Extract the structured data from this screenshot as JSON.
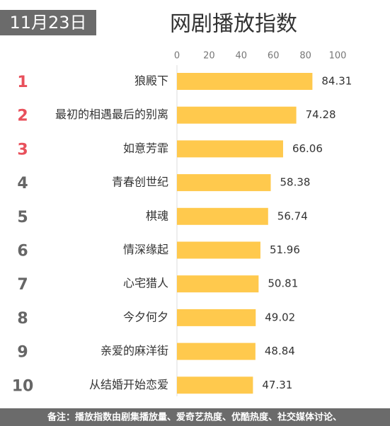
{
  "chart_data": {
    "type": "bar",
    "orientation": "horizontal",
    "date_tag": "11月23日",
    "title": "网剧播放指数",
    "ranks": [
      1,
      2,
      3,
      4,
      5,
      6,
      7,
      8,
      9,
      10
    ],
    "rank_colors": [
      "#e8505b",
      "#e8505b",
      "#e8505b",
      "#666666",
      "#666666",
      "#666666",
      "#666666",
      "#666666",
      "#666666",
      "#666666"
    ],
    "categories": [
      "狼殿下",
      "最初的相遇最后的别离",
      "如意芳霏",
      "青春创世纪",
      "棋魂",
      "情深缘起",
      "心宅猎人",
      "今夕何夕",
      "亲爱的麻洋街",
      "从结婚开始恋爱"
    ],
    "values": [
      84.31,
      74.28,
      66.06,
      58.38,
      56.74,
      51.96,
      50.81,
      49.02,
      48.84,
      47.31
    ],
    "color": "#ffc94d",
    "xlim": [
      0,
      100
    ],
    "xticks": [
      0,
      20,
      40,
      60,
      80,
      100
    ],
    "note": "备注：播放指数由剧集播放量、爱奇艺热度、优酷热度、社交媒体讨论、"
  }
}
